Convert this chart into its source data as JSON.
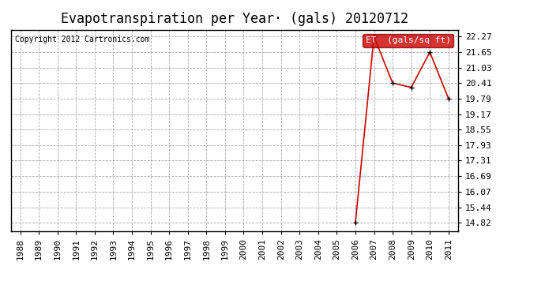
{
  "title": "Evapotranspiration per Year· (gals) 20120712",
  "copyright": "Copyright 2012 Cartronics.com",
  "legend_label": "ET  (gals/sq ft)",
  "legend_bg": "#cc0000",
  "legend_text_color": "#ffffff",
  "years": [
    1988,
    1989,
    1990,
    1991,
    1992,
    1993,
    1994,
    1995,
    1996,
    1997,
    1998,
    1999,
    2000,
    2001,
    2002,
    2003,
    2004,
    2005,
    2006,
    2007,
    2008,
    2009,
    2010,
    2011
  ],
  "values": [
    null,
    null,
    null,
    null,
    null,
    null,
    null,
    null,
    null,
    null,
    null,
    null,
    null,
    null,
    null,
    null,
    null,
    null,
    14.82,
    22.27,
    20.41,
    20.24,
    21.65,
    19.79
  ],
  "line_color": "#cc0000",
  "marker_color": "#000000",
  "bg_color": "#ffffff",
  "grid_color": "#aaaaaa",
  "yticks": [
    14.82,
    15.44,
    16.07,
    16.69,
    17.31,
    17.93,
    18.55,
    19.17,
    19.79,
    20.41,
    21.03,
    21.65,
    22.27
  ],
  "ylim_min": 14.5,
  "ylim_max": 22.55,
  "xlim_min": 1987.5,
  "xlim_max": 2011.5,
  "title_fontsize": 12,
  "tick_fontsize": 8,
  "copyright_fontsize": 7
}
